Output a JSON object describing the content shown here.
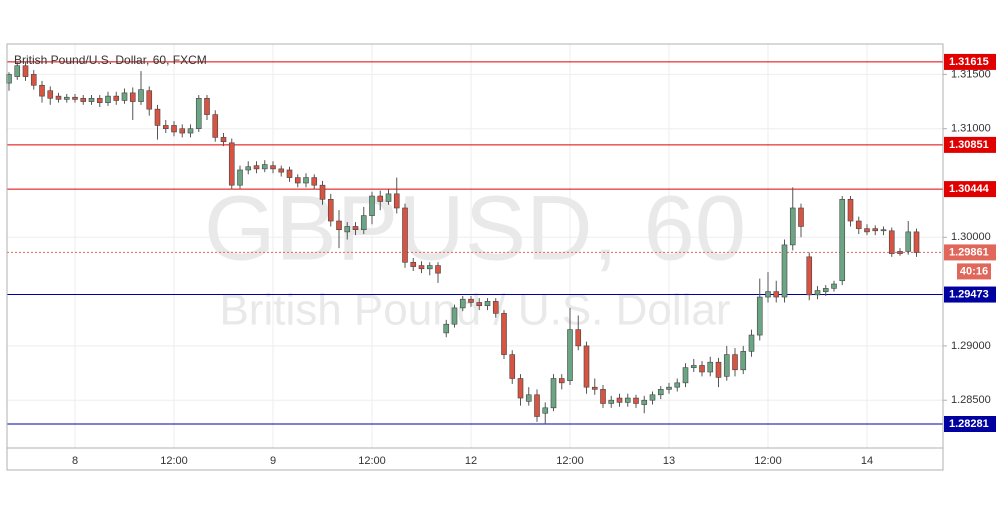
{
  "chart_data": {
    "type": "candlestick",
    "title": "British Pound/U.S. Dollar, 60, FXCM",
    "watermark": "GBPUSD, 60",
    "watermark_subtitle": "British Pound / U.S. Dollar",
    "categories": [
      null,
      null,
      null,
      null,
      null,
      null,
      null,
      null,
      "8",
      null,
      null,
      null,
      null,
      null,
      null,
      null,
      null,
      null,
      null,
      null,
      "12:00",
      null,
      null,
      null,
      null,
      null,
      null,
      null,
      null,
      null,
      null,
      null,
      "9",
      null,
      null,
      null,
      null,
      null,
      null,
      null,
      null,
      null,
      null,
      null,
      "12:00",
      null,
      null,
      null,
      null,
      null,
      null,
      null,
      null,
      null,
      null,
      null,
      "12",
      null,
      null,
      null,
      null,
      null,
      null,
      null,
      null,
      null,
      null,
      null,
      "12:00",
      null,
      null,
      null,
      null,
      null,
      null,
      null,
      null,
      null,
      null,
      null,
      "13",
      null,
      null,
      null,
      null,
      null,
      null,
      null,
      null,
      null,
      null,
      null,
      "12:00",
      null,
      null,
      null,
      null,
      null,
      null,
      null,
      null,
      null,
      null,
      null,
      "14",
      null,
      null,
      null,
      null,
      null,
      null
    ],
    "ohlc": [
      [
        1.3142,
        1.3152,
        1.3135,
        1.315
      ],
      [
        1.3148,
        1.3162,
        1.3145,
        1.3158
      ],
      [
        1.3158,
        1.3162,
        1.3144,
        1.3148
      ],
      [
        1.315,
        1.3154,
        1.3136,
        1.314
      ],
      [
        1.314,
        1.3144,
        1.3124,
        1.313
      ],
      [
        1.3135,
        1.3139,
        1.3122,
        1.3128
      ],
      [
        1.313,
        1.3133,
        1.3124,
        1.3127
      ],
      [
        1.3127,
        1.3132,
        1.3124,
        1.3129
      ],
      [
        1.3129,
        1.3132,
        1.3124,
        1.3127
      ],
      [
        1.3128,
        1.3131,
        1.3122,
        1.3125
      ],
      [
        1.3125,
        1.3131,
        1.3122,
        1.3128
      ],
      [
        1.3128,
        1.3131,
        1.312,
        1.3124
      ],
      [
        1.3124,
        1.3134,
        1.3121,
        1.313
      ],
      [
        1.313,
        1.3134,
        1.3122,
        1.3126
      ],
      [
        1.3126,
        1.3137,
        1.3123,
        1.3133
      ],
      [
        1.3133,
        1.3138,
        1.3108,
        1.3125
      ],
      [
        1.3125,
        1.3153,
        1.3122,
        1.3136
      ],
      [
        1.3135,
        1.3139,
        1.3112,
        1.3118
      ],
      [
        1.3118,
        1.3122,
        1.309,
        1.3103
      ],
      [
        1.3103,
        1.3108,
        1.3096,
        1.31
      ],
      [
        1.3103,
        1.3107,
        1.3093,
        1.3097
      ],
      [
        1.31,
        1.3104,
        1.3092,
        1.3096
      ],
      [
        1.3096,
        1.3104,
        1.3092,
        1.31
      ],
      [
        1.31,
        1.3131,
        1.3097,
        1.3128
      ],
      [
        1.3128,
        1.3131,
        1.3108,
        1.3113
      ],
      [
        1.3113,
        1.3117,
        1.3088,
        1.3092
      ],
      [
        1.3092,
        1.3096,
        1.3084,
        1.3088
      ],
      [
        1.3087,
        1.3091,
        1.3044,
        1.3048
      ],
      [
        1.3048,
        1.3066,
        1.3045,
        1.3062
      ],
      [
        1.3062,
        1.307,
        1.3058,
        1.3065
      ],
      [
        1.3066,
        1.307,
        1.3059,
        1.3063
      ],
      [
        1.3063,
        1.3071,
        1.306,
        1.3067
      ],
      [
        1.3066,
        1.307,
        1.3059,
        1.3063
      ],
      [
        1.3063,
        1.3066,
        1.3056,
        1.306
      ],
      [
        1.3062,
        1.3065,
        1.3051,
        1.3055
      ],
      [
        1.3055,
        1.3058,
        1.3046,
        1.305
      ],
      [
        1.305,
        1.3059,
        1.3046,
        1.3055
      ],
      [
        1.3055,
        1.3058,
        1.3044,
        1.3048
      ],
      [
        1.3048,
        1.3052,
        1.303,
        1.3035
      ],
      [
        1.3035,
        1.304,
        1.301,
        1.3015
      ],
      [
        1.3015,
        1.3025,
        1.299,
        1.3007
      ],
      [
        1.3005,
        1.3014,
        1.2998,
        1.301
      ],
      [
        1.301,
        1.3014,
        1.3002,
        1.3007
      ],
      [
        1.3007,
        1.3028,
        1.3003,
        1.302
      ],
      [
        1.302,
        1.3042,
        1.3012,
        1.3038
      ],
      [
        1.3038,
        1.3043,
        1.3025,
        1.3033
      ],
      [
        1.3033,
        1.3044,
        1.303,
        1.304
      ],
      [
        1.304,
        1.3055,
        1.3022,
        1.3027
      ],
      [
        1.3027,
        1.3031,
        1.2972,
        1.2977
      ],
      [
        1.2977,
        1.2981,
        1.2969,
        1.2973
      ],
      [
        1.2974,
        1.2978,
        1.2967,
        1.2971
      ],
      [
        1.2971,
        1.2977,
        1.2965,
        1.2974
      ],
      [
        1.2974,
        1.2977,
        1.2958,
        1.2967
      ],
      [
        1.2912,
        1.2924,
        1.2908,
        1.292
      ],
      [
        1.292,
        1.2938,
        1.2917,
        1.2935
      ],
      [
        1.2935,
        1.2946,
        1.2932,
        1.2943
      ],
      [
        1.2943,
        1.2946,
        1.2936,
        1.294
      ],
      [
        1.294,
        1.2944,
        1.2933,
        1.2937
      ],
      [
        1.2937,
        1.2944,
        1.2933,
        1.2941
      ],
      [
        1.2941,
        1.2944,
        1.2926,
        1.293
      ],
      [
        1.293,
        1.2933,
        1.2888,
        1.2892
      ],
      [
        1.2892,
        1.2896,
        1.2865,
        1.287
      ],
      [
        1.287,
        1.2874,
        1.2845,
        1.2852
      ],
      [
        1.2849,
        1.2862,
        1.2845,
        1.2855
      ],
      [
        1.2855,
        1.286,
        1.283,
        1.2835
      ],
      [
        1.2838,
        1.2848,
        1.2828,
        1.2843
      ],
      [
        1.2843,
        1.2874,
        1.284,
        1.287
      ],
      [
        1.287,
        1.2874,
        1.286,
        1.2866
      ],
      [
        1.2868,
        1.2935,
        1.2864,
        1.2915
      ],
      [
        1.2915,
        1.2928,
        1.2896,
        1.29
      ],
      [
        1.29,
        1.2904,
        1.2856,
        1.2862
      ],
      [
        1.2862,
        1.287,
        1.2855,
        1.286
      ],
      [
        1.286,
        1.2864,
        1.2843,
        1.2847
      ],
      [
        1.2847,
        1.2854,
        1.2843,
        1.285
      ],
      [
        1.2852,
        1.2856,
        1.2844,
        1.2848
      ],
      [
        1.2848,
        1.2856,
        1.2844,
        1.2852
      ],
      [
        1.2852,
        1.2855,
        1.2843,
        1.2847
      ],
      [
        1.2846,
        1.2854,
        1.2838,
        1.285
      ],
      [
        1.285,
        1.2858,
        1.2846,
        1.2855
      ],
      [
        1.2855,
        1.2863,
        1.2851,
        1.286
      ],
      [
        1.286,
        1.2866,
        1.2856,
        1.2862
      ],
      [
        1.2862,
        1.287,
        1.2858,
        1.2866
      ],
      [
        1.2866,
        1.2884,
        1.2862,
        1.288
      ],
      [
        1.288,
        1.2888,
        1.2876,
        1.2882
      ],
      [
        1.2882,
        1.2886,
        1.2872,
        1.2876
      ],
      [
        1.2876,
        1.289,
        1.2872,
        1.2885
      ],
      [
        1.2885,
        1.2889,
        1.2862,
        1.2871
      ],
      [
        1.2872,
        1.29,
        1.2868,
        1.2892
      ],
      [
        1.2892,
        1.2898,
        1.2872,
        1.2878
      ],
      [
        1.2878,
        1.29,
        1.2874,
        1.2895
      ],
      [
        1.2895,
        1.2915,
        1.289,
        1.291
      ],
      [
        1.291,
        1.2962,
        1.2905,
        1.2945
      ],
      [
        1.2945,
        1.2968,
        1.294,
        1.295
      ],
      [
        1.295,
        1.296,
        1.294,
        1.2945
      ],
      [
        1.2945,
        1.2998,
        1.294,
        1.2993
      ],
      [
        1.2993,
        1.3046,
        1.2988,
        1.3027
      ],
      [
        1.3027,
        1.3031,
        1.3,
        1.301
      ],
      [
        1.2982,
        1.2986,
        1.2942,
        1.2947
      ],
      [
        1.2947,
        1.2955,
        1.2943,
        1.2951
      ],
      [
        1.295,
        1.2956,
        1.2946,
        1.2953
      ],
      [
        1.2953,
        1.296,
        1.295,
        1.2957
      ],
      [
        1.296,
        1.3038,
        1.2956,
        1.3035
      ],
      [
        1.3035,
        1.3038,
        1.301,
        1.3015
      ],
      [
        1.3015,
        1.3019,
        1.3003,
        1.3008
      ],
      [
        1.3008,
        1.3012,
        1.3002,
        1.3005
      ],
      [
        1.3008,
        1.3011,
        1.3002,
        1.3006
      ],
      [
        1.3006,
        1.301,
        1.3002,
        1.3007
      ],
      [
        1.3006,
        1.3009,
        1.2982,
        1.2985
      ],
      [
        1.2987,
        1.299,
        1.2983,
        1.2985
      ],
      [
        1.2987,
        1.3015,
        1.2984,
        1.3005
      ],
      [
        1.3005,
        1.3008,
        1.2982,
        1.2986
      ]
    ],
    "up_color": "#6ba583",
    "down_color": "#d75442",
    "ylim": [
      1.2806,
      1.3178
    ],
    "yticks": [
      {
        "value": 1.315,
        "label": "1.31500"
      },
      {
        "value": 1.31,
        "label": "1.31000"
      },
      {
        "value": 1.3,
        "label": "1.30000"
      },
      {
        "value": 1.29,
        "label": "1.29000"
      },
      {
        "value": 1.285,
        "label": "1.28500"
      }
    ],
    "grid": true,
    "levels": [
      {
        "value": 1.31615,
        "color": "#e00000"
      },
      {
        "value": 1.30851,
        "color": "#e00000"
      },
      {
        "value": 1.30444,
        "color": "#e00000"
      },
      {
        "value": 1.29473,
        "color": "#0000a0"
      },
      {
        "value": 1.28281,
        "color": "#0000a0"
      }
    ],
    "last_price": 1.29861,
    "last_price_color": "#e0675a",
    "countdown": "40:16"
  }
}
